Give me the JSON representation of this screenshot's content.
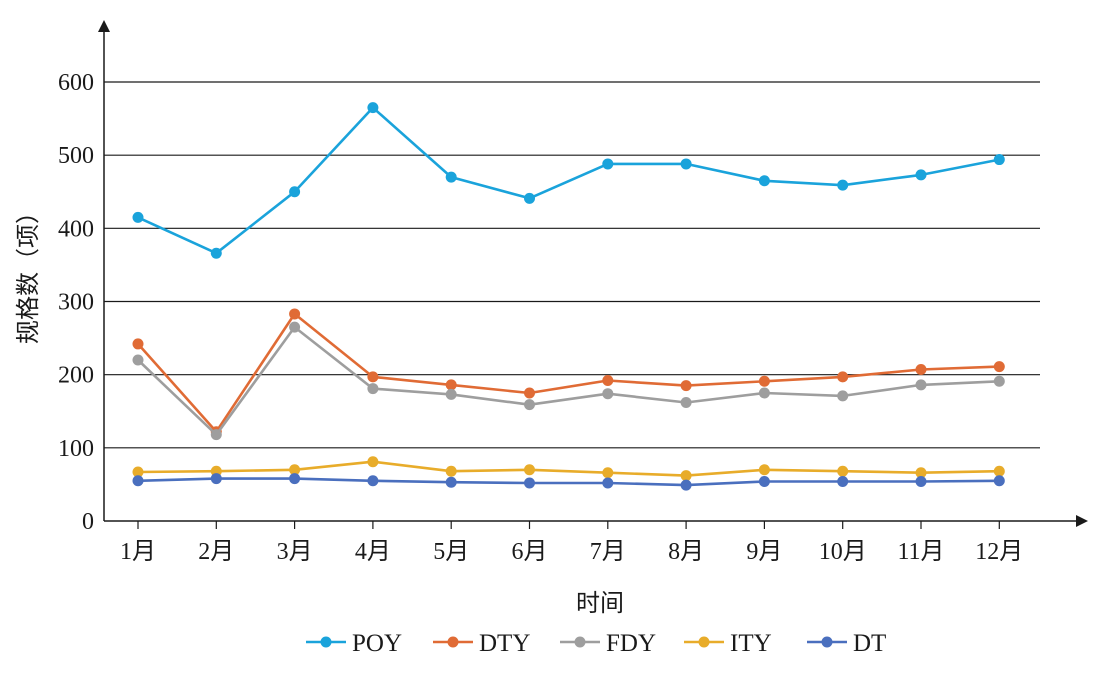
{
  "chart_data": {
    "type": "line",
    "xlabel": "时间",
    "ylabel": "规格数（项）",
    "categories": [
      "1月",
      "2月",
      "3月",
      "4月",
      "5月",
      "6月",
      "7月",
      "8月",
      "9月",
      "10月",
      "11月",
      "12月"
    ],
    "ylim": [
      0,
      650
    ],
    "yticks": [
      0,
      100,
      200,
      300,
      400,
      500,
      600
    ],
    "grid": true,
    "legend_position": "bottom",
    "series": [
      {
        "name": "POY",
        "color": "#1aa3db",
        "values": [
          415,
          366,
          450,
          565,
          470,
          441,
          488,
          488,
          465,
          459,
          473,
          494
        ]
      },
      {
        "name": "DTY",
        "color": "#e06b35",
        "values": [
          242,
          122,
          283,
          197,
          186,
          175,
          192,
          185,
          191,
          197,
          207,
          211
        ]
      },
      {
        "name": "FDY",
        "color": "#9e9e9e",
        "values": [
          220,
          118,
          265,
          181,
          173,
          159,
          174,
          162,
          175,
          171,
          186,
          191
        ]
      },
      {
        "name": "ITY",
        "color": "#e8ac2a",
        "values": [
          67,
          68,
          70,
          81,
          68,
          70,
          66,
          62,
          70,
          68,
          66,
          68
        ]
      },
      {
        "name": "DT",
        "color": "#4a6fbe",
        "values": [
          55,
          58,
          58,
          55,
          53,
          52,
          52,
          49,
          54,
          54,
          54,
          55
        ]
      }
    ]
  }
}
